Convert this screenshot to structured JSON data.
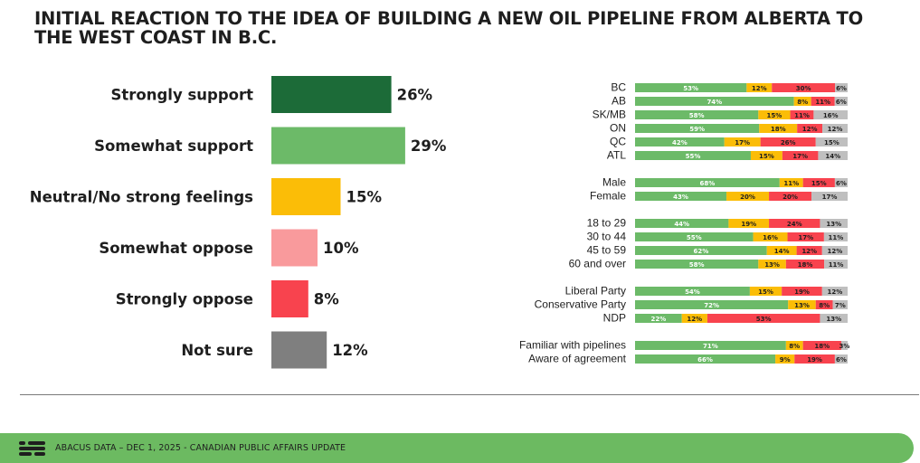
{
  "title": "INITIAL REACTION TO THE IDEA OF BUILDING A NEW OIL PIPELINE FROM ALBERTA TO THE WEST COAST IN B.C.",
  "footer": {
    "text": "ABACUS DATA – DEC 1, 2025 - CANADIAN PUBLIC AFFAIRS UPDATE",
    "logo_icon": "abacus-logo-icon"
  },
  "colors": {
    "strongly_support": "#1c6b38",
    "somewhat_support": "#6cba68",
    "neutral": "#fbbd07",
    "somewhat_oppose": "#f99a9c",
    "strongly_oppose": "#f8434e",
    "not_sure": "#7f7f7f",
    "right_support": "#6cba68",
    "right_neutral": "#fbbd07",
    "right_oppose": "#f8434e",
    "right_not_sure": "#bfbfbf",
    "footer": "#6cba61"
  },
  "chart_data": [
    {
      "type": "bar",
      "orientation": "horizontal",
      "categories": [
        "Strongly support",
        "Somewhat support",
        "Neutral/No strong feelings",
        "Somewhat oppose",
        "Strongly oppose",
        "Not sure"
      ],
      "values": [
        26,
        29,
        15,
        10,
        8,
        12
      ],
      "value_suffix": "%",
      "bar_color_keys": [
        "strongly_support",
        "somewhat_support",
        "neutral",
        "somewhat_oppose",
        "strongly_oppose",
        "not_sure"
      ]
    },
    {
      "type": "bar",
      "orientation": "horizontal",
      "stacked": true,
      "value_suffix": "%",
      "series_color_keys": [
        "right_support",
        "right_neutral",
        "right_oppose",
        "right_not_sure"
      ],
      "groups": [
        {
          "rows": [
            {
              "label": "BC",
              "values": [
                53,
                12,
                30,
                6
              ]
            },
            {
              "label": "AB",
              "values": [
                74,
                8,
                11,
                6
              ]
            },
            {
              "label": "SK/MB",
              "values": [
                58,
                15,
                11,
                16
              ]
            },
            {
              "label": "ON",
              "values": [
                59,
                18,
                12,
                12
              ]
            },
            {
              "label": "QC",
              "values": [
                42,
                17,
                26,
                15
              ]
            },
            {
              "label": "ATL",
              "values": [
                55,
                15,
                17,
                14
              ]
            }
          ]
        },
        {
          "rows": [
            {
              "label": "Male",
              "values": [
                68,
                11,
                15,
                6
              ]
            },
            {
              "label": "Female",
              "values": [
                43,
                20,
                20,
                17
              ]
            }
          ]
        },
        {
          "rows": [
            {
              "label": "18 to 29",
              "values": [
                44,
                19,
                24,
                13
              ]
            },
            {
              "label": "30 to 44",
              "values": [
                55,
                16,
                17,
                11
              ]
            },
            {
              "label": "45 to 59",
              "values": [
                62,
                14,
                12,
                12
              ]
            },
            {
              "label": "60 and over",
              "values": [
                58,
                13,
                18,
                11
              ]
            }
          ]
        },
        {
          "rows": [
            {
              "label": "Liberal Party",
              "values": [
                54,
                15,
                19,
                12
              ]
            },
            {
              "label": "Conservative Party",
              "values": [
                72,
                13,
                8,
                7
              ]
            },
            {
              "label": "NDP",
              "values": [
                22,
                12,
                53,
                13
              ]
            }
          ]
        },
        {
          "rows": [
            {
              "label": "Familiar with pipelines",
              "values": [
                71,
                8,
                18,
                3
              ]
            },
            {
              "label": "Aware of agreement",
              "values": [
                66,
                9,
                19,
                6
              ]
            }
          ]
        }
      ]
    }
  ]
}
